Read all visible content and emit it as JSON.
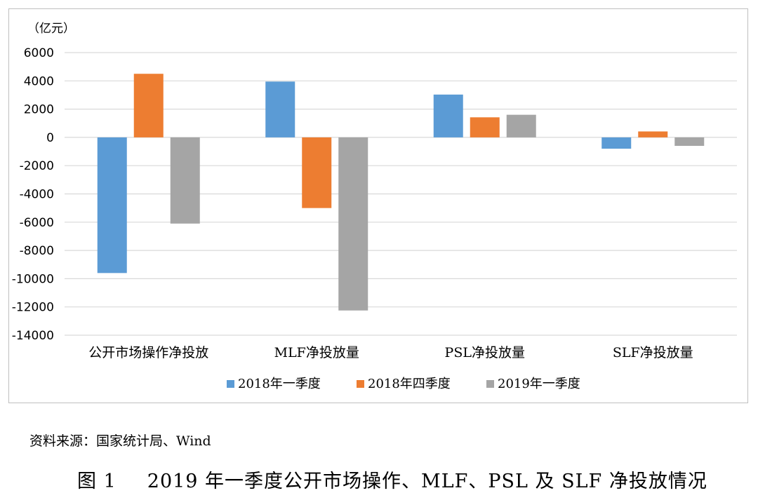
{
  "colors": {
    "series": [
      "#5b9bd5",
      "#ed7d31",
      "#a5a5a5"
    ],
    "grid": "#d9d9d9",
    "frame": "#bfbfbf"
  },
  "chart_data": {
    "type": "bar",
    "unit_label": "（亿元）",
    "categories": [
      "公开市场操作净投放",
      "MLF净投放量",
      "PSL净投放量",
      "SLF净投放量"
    ],
    "series": [
      {
        "name": "2018年一季度",
        "values": [
          -9600,
          3950,
          3030,
          -800
        ]
      },
      {
        "name": "2018年四季度",
        "values": [
          4500,
          -5000,
          1420,
          420
        ]
      },
      {
        "name": "2019年一季度",
        "values": [
          -6100,
          -12250,
          1600,
          -600
        ]
      }
    ],
    "ylim": [
      -14000,
      6000
    ],
    "yticks": [
      6000,
      4000,
      2000,
      0,
      -2000,
      -4000,
      -6000,
      -8000,
      -10000,
      -12000,
      -14000
    ],
    "grid": true,
    "legend_position": "bottom"
  },
  "source_text": "资料来源：国家统计局、Wind",
  "caption": {
    "label": "图 1",
    "text": "2019 年一季度公开市场操作、MLF、PSL 及 SLF 净投放情况"
  }
}
